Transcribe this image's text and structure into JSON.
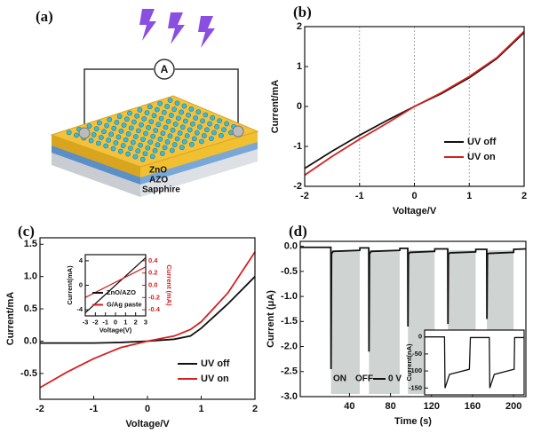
{
  "chart_data": [
    {
      "type": "schematic",
      "label": "(a)",
      "meter": "A",
      "layers": [
        "ZnO",
        "AZO",
        "Sapphire"
      ]
    },
    {
      "type": "line",
      "label": "(b)",
      "xlabel": "Voltage/V",
      "ylabel": "Current/mA",
      "xlim": [
        -2,
        2
      ],
      "xticks": [
        -2,
        -1,
        0,
        1,
        2
      ],
      "ylim": [
        -2,
        2
      ],
      "yticks": [
        -2,
        -1,
        0,
        1,
        2
      ],
      "grid": "x",
      "x": [
        -2,
        -1.5,
        -1,
        -0.5,
        0,
        0.5,
        1,
        1.5,
        2
      ],
      "series": [
        {
          "name": "UV off",
          "color": "#111111",
          "values": [
            -1.55,
            -1.12,
            -0.72,
            -0.35,
            0,
            0.33,
            0.72,
            1.2,
            1.85
          ]
        },
        {
          "name": "UV on",
          "color": "#d42020",
          "values": [
            -1.72,
            -1.25,
            -0.82,
            -0.42,
            0,
            0.35,
            0.75,
            1.22,
            1.88
          ]
        }
      ]
    },
    {
      "type": "line",
      "label": "(c)",
      "xlabel": "Voltage/V",
      "ylabel": "Current/mA",
      "xlim": [
        -2,
        2
      ],
      "xticks": [
        -2,
        -1,
        0,
        1,
        2
      ],
      "ylim": [
        -0.9,
        1.6
      ],
      "yticks": [
        {
          "value": -0.5,
          "label": "-0.5"
        },
        {
          "value": 0,
          "label": "0.0"
        },
        0.5,
        {
          "value": 1,
          "label": "1.0"
        },
        1.5
      ],
      "x": [
        -2,
        -1.5,
        -1,
        -0.5,
        0,
        0.5,
        0.8,
        1,
        1.5,
        2
      ],
      "series": [
        {
          "name": "UV off",
          "color": "#111111",
          "values": [
            -0.03,
            -0.03,
            -0.03,
            -0.02,
            0,
            0.03,
            0.08,
            0.2,
            0.58,
            1.0
          ]
        },
        {
          "name": "UV on",
          "color": "#d42020",
          "values": [
            -0.72,
            -0.48,
            -0.27,
            -0.1,
            0,
            0.08,
            0.18,
            0.3,
            0.75,
            1.38
          ]
        }
      ]
    },
    {
      "type": "line",
      "xlabel": "Voltage(V)",
      "ylabel": "Current(mA)",
      "y2label": "Current (mA)",
      "xlim": [
        -3,
        3
      ],
      "xticks": [
        -3,
        -2,
        -1,
        0,
        1,
        2,
        3
      ],
      "ylim": [
        -5,
        5
      ],
      "yticks": [
        -4,
        0,
        4
      ],
      "y2lim": [
        -0.5,
        0.5
      ],
      "y2ticks": [
        -0.4,
        -0.2,
        {
          "value": 0,
          "label": "0.0"
        },
        0.2,
        0.4
      ],
      "x": [
        -3,
        3
      ],
      "series": [
        {
          "name": "ZnO/AZO",
          "color": "#111111",
          "values": [
            -4.5,
            4.5
          ]
        },
        {
          "name": "G/Ag paste",
          "color": "#d42020",
          "axis": "y2",
          "values": [
            -0.2,
            0.3
          ]
        }
      ]
    },
    {
      "type": "line",
      "label": "(d)",
      "xlabel": "Time (s)",
      "ylabel": "Current (μA)",
      "xlim": [
        -8,
        212
      ],
      "xticks": [
        40,
        80,
        120,
        160,
        200
      ],
      "ylim": [
        -3.0,
        0.1
      ],
      "yticks": [
        {
          "value": -3,
          "label": "-3.0"
        },
        -2.5,
        {
          "value": -2,
          "label": "-2.0"
        },
        -1.5,
        {
          "value": -1,
          "label": "-1.0"
        },
        -0.5,
        {
          "value": 0,
          "label": "0.0"
        }
      ],
      "shade_labels": [
        "ON",
        "OFF"
      ],
      "shades": [
        [
          22,
          50
        ],
        [
          59,
          89
        ],
        [
          97,
          123
        ],
        [
          136,
          163
        ],
        [
          174,
          200
        ]
      ],
      "x": [
        -8,
        21.8,
        22,
        22.5,
        24,
        50,
        50.2,
        58.8,
        59,
        59.5,
        61,
        89,
        89.2,
        96.8,
        97,
        97.5,
        99,
        123,
        123.2,
        135.8,
        136,
        136.5,
        138,
        163,
        163.2,
        173.8,
        174,
        174.5,
        176,
        200,
        200.2,
        212
      ],
      "series": [
        {
          "name": "0 V",
          "color": "#111111",
          "values": [
            -0.02,
            -0.02,
            -2.45,
            -0.15,
            -0.1,
            -0.08,
            -0.03,
            -0.03,
            -2.1,
            -0.15,
            -0.1,
            -0.08,
            -0.04,
            -0.04,
            -1.6,
            -0.15,
            -0.12,
            -0.1,
            -0.05,
            -0.05,
            -1.55,
            -0.15,
            -0.13,
            -0.11,
            -0.06,
            -0.06,
            -1.45,
            -0.15,
            -0.14,
            -0.12,
            -0.06,
            -0.05
          ]
        }
      ]
    },
    {
      "type": "line",
      "ylabel": "Current(nA)",
      "xlim": [
        0,
        10
      ],
      "ylim": [
        -170,
        20
      ],
      "yticks": [
        0,
        -50,
        -100,
        -150
      ],
      "x": [
        0,
        2,
        2.05,
        2.5,
        4.5,
        4.6,
        6.5,
        6.55,
        7,
        9,
        9.05,
        10
      ],
      "series": [
        {
          "color": "#111111",
          "values": [
            0,
            0,
            -150,
            -110,
            -95,
            -2,
            -2,
            -150,
            -110,
            -95,
            -2,
            -2
          ]
        }
      ]
    }
  ]
}
